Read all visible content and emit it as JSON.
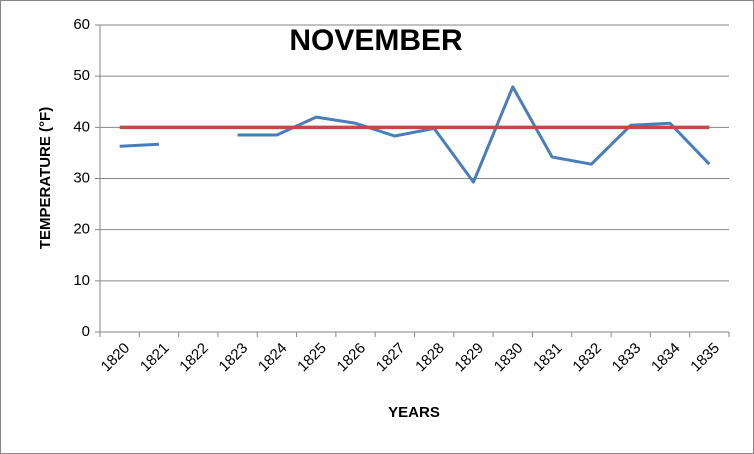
{
  "chart_data": {
    "type": "line",
    "title": "NOVEMBER",
    "x_label": "YEARS",
    "y_label": "TEMPERATURE (°F)",
    "categories": [
      "1820",
      "1821",
      "1822",
      "1823",
      "1824",
      "1825",
      "1826",
      "1827",
      "1828",
      "1829",
      "1830",
      "1831",
      "1832",
      "1833",
      "1834",
      "1835"
    ],
    "series": [
      {
        "color": "#4a7ebb",
        "values": [
          36.3,
          36.7,
          null,
          38.5,
          38.5,
          42,
          40.8,
          38.3,
          39.8,
          29.3,
          47.9,
          34.2,
          32.8,
          40.4,
          40.8,
          32.8
        ]
      },
      {
        "color": "#be4b48",
        "values": [
          40,
          40,
          40,
          40,
          40,
          40,
          40,
          40,
          40,
          40,
          40,
          40,
          40,
          40,
          40,
          40
        ]
      }
    ],
    "ylim": [
      0,
      60
    ],
    "yticks": [
      0,
      10,
      20,
      30,
      40,
      50,
      60
    ],
    "grid": true
  }
}
